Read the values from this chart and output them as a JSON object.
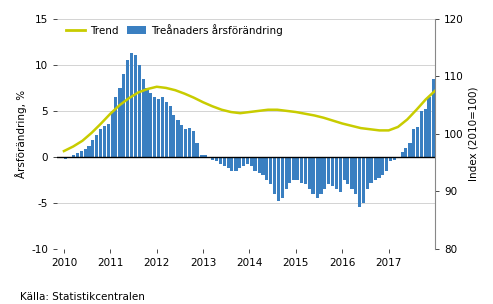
{
  "footnote": "Källa: Statistikcentralen",
  "ylabel_left": "Årsförändring, %",
  "ylabel_right": "Index (2010=100)",
  "ylim_left": [
    -10,
    15
  ],
  "ylim_right": [
    80,
    120
  ],
  "yticks_left": [
    -10,
    -5,
    0,
    5,
    10,
    15
  ],
  "yticks_right": [
    80,
    90,
    100,
    110,
    120
  ],
  "bar_color": "#3A7FC1",
  "trend_color": "#C8CC00",
  "legend_label_trend": "Trend",
  "xlim": [
    2009.85,
    2018.0
  ],
  "xticks": [
    2010,
    2011,
    2012,
    2013,
    2014,
    2015,
    2016,
    2017
  ],
  "background_color": "#ffffff",
  "grid_color": "#cccccc",
  "bar_months": [
    2010.04,
    2010.12,
    2010.21,
    2010.29,
    2010.37,
    2010.46,
    2010.54,
    2010.62,
    2010.71,
    2010.79,
    2010.87,
    2010.96,
    2011.04,
    2011.12,
    2011.21,
    2011.29,
    2011.37,
    2011.46,
    2011.54,
    2011.62,
    2011.71,
    2011.79,
    2011.87,
    2011.96,
    2012.04,
    2012.12,
    2012.21,
    2012.29,
    2012.37,
    2012.46,
    2012.54,
    2012.62,
    2012.71,
    2012.79,
    2012.87,
    2012.96,
    2013.04,
    2013.12,
    2013.21,
    2013.29,
    2013.37,
    2013.46,
    2013.54,
    2013.62,
    2013.71,
    2013.79,
    2013.87,
    2013.96,
    2014.04,
    2014.12,
    2014.21,
    2014.29,
    2014.37,
    2014.46,
    2014.54,
    2014.62,
    2014.71,
    2014.79,
    2014.87,
    2014.96,
    2015.04,
    2015.12,
    2015.21,
    2015.29,
    2015.37,
    2015.46,
    2015.54,
    2015.62,
    2015.71,
    2015.79,
    2015.87,
    2015.96,
    2016.04,
    2016.12,
    2016.21,
    2016.29,
    2016.37,
    2016.46,
    2016.54,
    2016.62,
    2016.71,
    2016.79,
    2016.87,
    2016.96,
    2017.04,
    2017.12,
    2017.21,
    2017.29,
    2017.37,
    2017.46,
    2017.54,
    2017.62,
    2017.71,
    2017.79,
    2017.87,
    2017.96
  ],
  "bar_values": [
    -0.2,
    0.0,
    0.2,
    0.4,
    0.6,
    0.8,
    1.2,
    1.8,
    2.4,
    3.0,
    3.3,
    3.6,
    5.0,
    6.5,
    7.5,
    9.0,
    10.5,
    11.3,
    11.1,
    10.0,
    8.5,
    7.5,
    7.0,
    6.5,
    6.3,
    6.5,
    6.0,
    5.5,
    4.5,
    4.0,
    3.5,
    3.0,
    3.1,
    2.8,
    1.5,
    0.2,
    0.2,
    0.0,
    -0.3,
    -0.5,
    -0.8,
    -1.0,
    -1.2,
    -1.5,
    -1.5,
    -1.2,
    -1.0,
    -0.8,
    -1.0,
    -1.5,
    -1.8,
    -2.0,
    -2.5,
    -3.0,
    -4.0,
    -4.8,
    -4.5,
    -3.5,
    -2.8,
    -2.5,
    -2.5,
    -2.8,
    -3.0,
    -3.5,
    -4.0,
    -4.5,
    -4.0,
    -3.5,
    -3.0,
    -3.2,
    -3.5,
    -3.8,
    -2.5,
    -3.0,
    -3.5,
    -4.0,
    -5.5,
    -5.0,
    -3.5,
    -2.8,
    -2.5,
    -2.3,
    -2.0,
    -1.5,
    -0.5,
    -0.3,
    0.0,
    0.5,
    1.0,
    1.5,
    3.0,
    3.2,
    5.0,
    5.2,
    6.5,
    8.5
  ],
  "trend_dates": [
    2010.0,
    2010.2,
    2010.4,
    2010.6,
    2010.8,
    2011.0,
    2011.2,
    2011.4,
    2011.6,
    2011.8,
    2012.0,
    2012.2,
    2012.4,
    2012.6,
    2012.8,
    2013.0,
    2013.2,
    2013.4,
    2013.6,
    2013.8,
    2014.0,
    2014.2,
    2014.4,
    2014.6,
    2014.8,
    2015.0,
    2015.2,
    2015.4,
    2015.6,
    2015.8,
    2016.0,
    2016.2,
    2016.4,
    2016.6,
    2016.8,
    2017.0,
    2017.2,
    2017.4,
    2017.6,
    2017.8,
    2018.0
  ],
  "trend_values": [
    97.0,
    97.8,
    98.8,
    100.2,
    101.8,
    103.5,
    105.0,
    106.2,
    107.2,
    107.8,
    108.2,
    108.0,
    107.6,
    107.0,
    106.3,
    105.5,
    104.8,
    104.2,
    103.8,
    103.6,
    103.8,
    104.0,
    104.2,
    104.2,
    104.0,
    103.8,
    103.5,
    103.2,
    102.8,
    102.3,
    101.8,
    101.4,
    101.0,
    100.8,
    100.6,
    100.6,
    101.2,
    102.5,
    104.2,
    106.0,
    107.5
  ]
}
